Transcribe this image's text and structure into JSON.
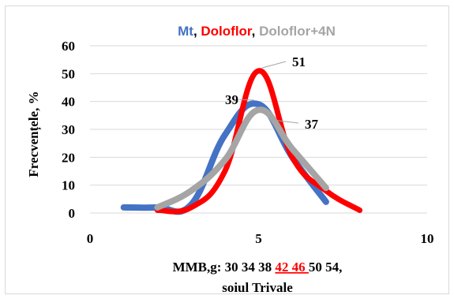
{
  "chart_data": {
    "type": "line",
    "title": "",
    "ylabel": "Frecvențele, %",
    "xlabel_line1_parts": [
      {
        "text": "MMB,g: 30 34 38 ",
        "color": "#000000",
        "underline": false
      },
      {
        "text": "42 46 ",
        "color": "#ff0000",
        "underline": true
      },
      {
        "text": "50 54,",
        "color": "#000000",
        "underline": false
      }
    ],
    "xlabel_line2": "soiul Trivale",
    "xlim": [
      0,
      10
    ],
    "ylim": [
      0,
      60
    ],
    "x_ticks": [
      "0",
      "5",
      "10"
    ],
    "y_ticks": [
      "0",
      "10",
      "20",
      "30",
      "40",
      "50",
      "60"
    ],
    "grid": "horizontal",
    "legend": {
      "placement": "top",
      "entries": [
        {
          "text": "Mt",
          "color": "#4472c4"
        },
        {
          "text": ", ",
          "color": "#000000"
        },
        {
          "text": "Doloflor",
          "color": "#ff0000"
        },
        {
          "text": ", ",
          "color": "#000000"
        },
        {
          "text": "Doloflor+4N",
          "color": "#a5a5a5"
        }
      ]
    },
    "series": [
      {
        "name": "Mt",
        "color": "#4472c4",
        "x": [
          1,
          2,
          3,
          4,
          5,
          6,
          7
        ],
        "y": [
          2,
          2,
          3,
          28,
          39,
          20,
          4
        ]
      },
      {
        "name": "Doloflor",
        "color": "#ff0000",
        "x": [
          2,
          3,
          4,
          5,
          6,
          7,
          8
        ],
        "y": [
          1,
          2,
          15,
          51,
          20,
          8,
          1
        ]
      },
      {
        "name": "Doloflor+4N",
        "color": "#a5a5a5",
        "x": [
          2,
          3,
          4,
          5,
          6,
          7
        ],
        "y": [
          2,
          8,
          19,
          37,
          23,
          9
        ]
      }
    ],
    "data_labels": [
      {
        "text": "51",
        "series": "Doloflor",
        "x": 5,
        "y": 51
      },
      {
        "text": "39",
        "series": "Mt",
        "x": 5,
        "y": 39
      },
      {
        "text": "37",
        "series": "Doloflor+4N",
        "x": 5,
        "y": 37
      }
    ]
  }
}
